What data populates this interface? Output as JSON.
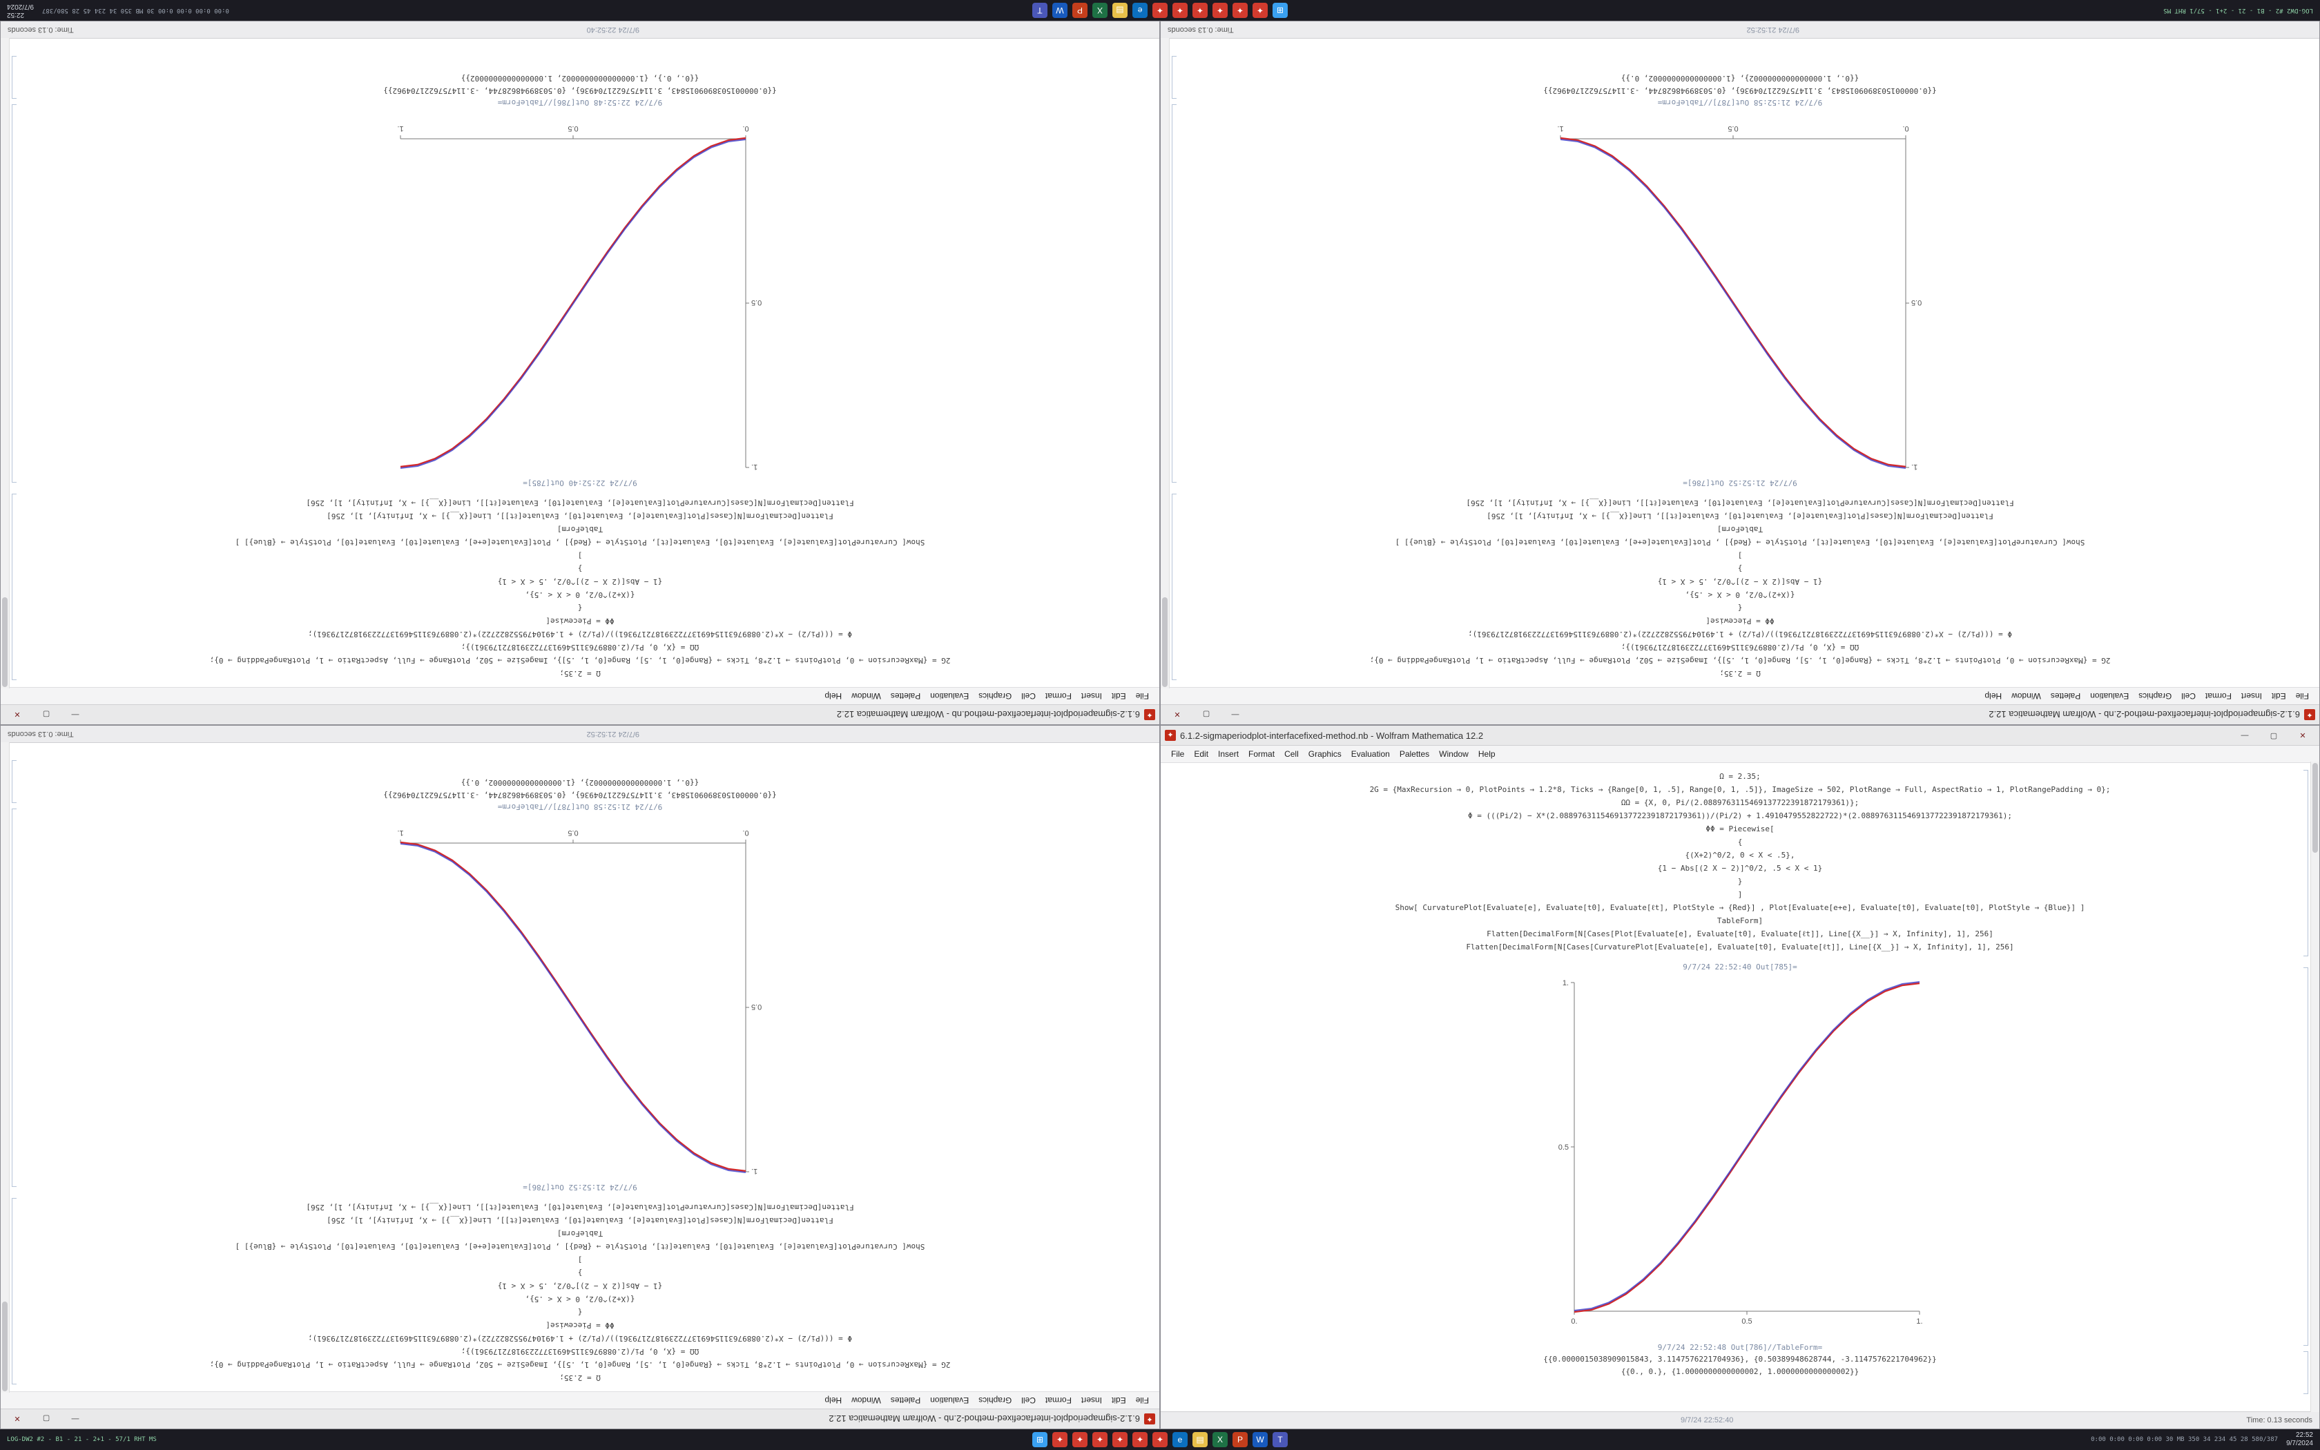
{
  "ui": {
    "app_icon_glyph": "✦",
    "window_controls": {
      "minimize": "—",
      "maximize": "▢",
      "close": "✕"
    },
    "menu": [
      "File",
      "Edit",
      "Insert",
      "Format",
      "Cell",
      "Graphics",
      "Evaluation",
      "Palettes",
      "Window",
      "Help"
    ]
  },
  "notebooks": {
    "a": {
      "title": "6.1.2-sigmaperiodplot-interfacefixed-method.nb - Wolfram Mathematica 12.2",
      "code_lines": [
        "Ω = 2.35;",
        "2G = {MaxRecursion → 0, PlotPoints → 1.2*8, Ticks → {Range[0, 1, .5], Range[0, 1, .5]}, ImageSize → 502, PlotRange → Full, AspectRatio → 1, PlotRangePadding → 0};",
        "ΩΩ = {X, 0, Pi/(2.0889763115469137722391872179361)};",
        "Φ = (((Pi/2) − X*(2.0889763115469137722391872179361))/(Pi/2) + 1.4910479552822722)*(2.0889763115469137722391872179361);",
        "ΦΦ = Piecewise[",
        "{",
        "{(X+2)^0/2, 0 < X < .5},",
        "{1 − Abs[(2 X − 2)]^0/2, .5 < X < 1}",
        "}",
        "]",
        "Show[ CurvaturePlot[Evaluate[e], Evaluate[t0], Evaluate[ℓt], PlotStyle → {Red}] , Plot[Evaluate[e+e], Evaluate[t0], Evaluate[t0], PlotStyle → {Blue}] ]",
        "TableForm]",
        "Flatten[DecimalForm[N[Cases[Plot[Evaluate[e], Evaluate[t0], Evaluate[ℓt]], Line[{X__}] → X, Infinity], 1], 256]",
        "Flatten[DecimalForm[N[Cases[CurvaturePlot[Evaluate[e], Evaluate[t0], Evaluate[ℓt]], Line[{X__}] → X, Infinity], 1], 256]"
      ],
      "out_plot_label": "9/7/24 22:52:40 Out[785]=",
      "out_table_label": "9/7/24 22:52:48 Out[786]//TableForm=",
      "result_lines": [
        "{{0.0000015038909015843, 3.1147576221704936}, {0.50389948628744, -3.1147576221704962}}",
        "{{0., 0.}, {1.0000000000000002, 1.0000000000000002}}"
      ],
      "status_center": "9/7/24 22:52:40",
      "status_right": "Time: 0.13 seconds",
      "plot": {
        "type": "line",
        "direction": "ascending",
        "xlim": [
          0,
          1
        ],
        "ylim": [
          0,
          1
        ],
        "x_ticks": [
          {
            "v": 0,
            "label": "0."
          },
          {
            "v": 0.5,
            "label": "0.5"
          },
          {
            "v": 1,
            "label": "1."
          }
        ],
        "y_ticks": [
          {
            "v": 0.5,
            "label": "0.5"
          },
          {
            "v": 1,
            "label": "1."
          }
        ],
        "curve_colors": [
          "#d42a2a",
          "#3a3ac8"
        ]
      }
    },
    "b": {
      "title": "6.1.2-sigmaperiodplot-interfacefixed-method-2.nb - Wolfram Mathematica 12.2",
      "code_lines": [
        "Ω = 2.35;",
        "2G = {MaxRecursion → 0, PlotPoints → 1.2*8, Ticks → {Range[0, 1, .5], Range[0, 1, .5]}, ImageSize → 502, PlotRange → Full, AspectRatio → 1, PlotRangePadding → 0};",
        "ΩΩ = {X, 0, Pi/(2.0889763115469137722391872179361)};",
        "Φ = (((Pi/2) − X*(2.0889763115469137722391872179361))/(Pi/2) + 1.4910479552822722)*(2.0889763115469137722391872179361);",
        "ΦΦ = Piecewise[",
        "{",
        "{(X+2)^0/2, 0 < X < .5},",
        "{1 − Abs[(2 X − 2)]^0/2, .5 < X < 1}",
        "}",
        "]",
        "Show[ CurvaturePlot[Evaluate[e], Evaluate[t0], Evaluate[ℓt], PlotStyle → {Red}] , Plot[Evaluate[e+e], Evaluate[t0], Evaluate[t0], PlotStyle → {Blue}] ]",
        "TableForm]",
        "Flatten[DecimalForm[N[Cases[Plot[Evaluate[e], Evaluate[t0], Evaluate[ℓt]], Line[{X__}] → X, Infinity], 1], 256]",
        "Flatten[DecimalForm[N[Cases[CurvaturePlot[Evaluate[e], Evaluate[t0], Evaluate[ℓt]], Line[{X__}] → X, Infinity], 1], 256]"
      ],
      "out_plot_label": "9/7/24 21:52:52 Out[786]=",
      "out_table_label": "9/7/24 21:52:58 Out[787]//TableForm=",
      "result_lines": [
        "{{0.0000015038909015843, 3.1147576221704936}, {0.50389948628744, -3.1147576221704962}}",
        "{{0., 1.0000000000000002}, {1.0000000000000002, 0.}}"
      ],
      "status_center": "9/7/24 21:52:52",
      "status_right": "Time: 0.13 seconds",
      "plot": {
        "type": "line",
        "direction": "descending",
        "xlim": [
          0,
          1
        ],
        "ylim": [
          0,
          1
        ],
        "x_ticks": [
          {
            "v": 0,
            "label": "0."
          },
          {
            "v": 0.5,
            "label": "0.5"
          },
          {
            "v": 1,
            "label": "1."
          }
        ],
        "y_ticks": [
          {
            "v": 0.5,
            "label": "0.5"
          },
          {
            "v": 1,
            "label": "1."
          }
        ],
        "curve_colors": [
          "#d42a2a",
          "#3a3ac8"
        ]
      }
    }
  },
  "plot_curve": {
    "x": [
      0,
      0.05,
      0.1,
      0.15,
      0.2,
      0.25,
      0.3,
      0.35,
      0.4,
      0.45,
      0.5,
      0.55,
      0.6,
      0.65,
      0.7,
      0.75,
      0.8,
      0.85,
      0.9,
      0.95,
      1
    ],
    "y": [
      0,
      0.0062,
      0.0245,
      0.0545,
      0.0955,
      0.1464,
      0.2061,
      0.273,
      0.3455,
      0.4218,
      0.5,
      0.5782,
      0.6545,
      0.727,
      0.7939,
      0.8536,
      0.9045,
      0.9455,
      0.9755,
      0.9938,
      1
    ]
  },
  "taskbar": {
    "overlay_left": "LOG-DW2 #2 - B1 - 21 - 2+1 - 57/1 RHT MS",
    "tray_stats": "0:00 0:00 0:00 0:00 30 MB 350 34 234 45 28 580/387",
    "clock_time": "22:52",
    "clock_date": "9/7/2024",
    "icons": [
      {
        "name": "start",
        "color": "#3aa0f0",
        "glyph": "⊞"
      },
      {
        "name": "mathematica-1",
        "color": "#d23b2e",
        "glyph": "✦"
      },
      {
        "name": "mathematica-2",
        "color": "#d23b2e",
        "glyph": "✦"
      },
      {
        "name": "mathematica-3",
        "color": "#d23b2e",
        "glyph": "✦"
      },
      {
        "name": "mathematica-4",
        "color": "#d23b2e",
        "glyph": "✦"
      },
      {
        "name": "mathematica-5",
        "color": "#d23b2e",
        "glyph": "✦"
      },
      {
        "name": "mathematica-6",
        "color": "#d23b2e",
        "glyph": "✦"
      },
      {
        "name": "edge-browser",
        "color": "#0c6fbe",
        "glyph": "e"
      },
      {
        "name": "file-explorer",
        "color": "#e8c04a",
        "glyph": "▤"
      },
      {
        "name": "excel",
        "color": "#1e7145",
        "glyph": "X"
      },
      {
        "name": "powerpoint",
        "color": "#c43e1c",
        "glyph": "P"
      },
      {
        "name": "word",
        "color": "#185abd",
        "glyph": "W"
      },
      {
        "name": "teams",
        "color": "#4a57b8",
        "glyph": "T"
      }
    ]
  }
}
